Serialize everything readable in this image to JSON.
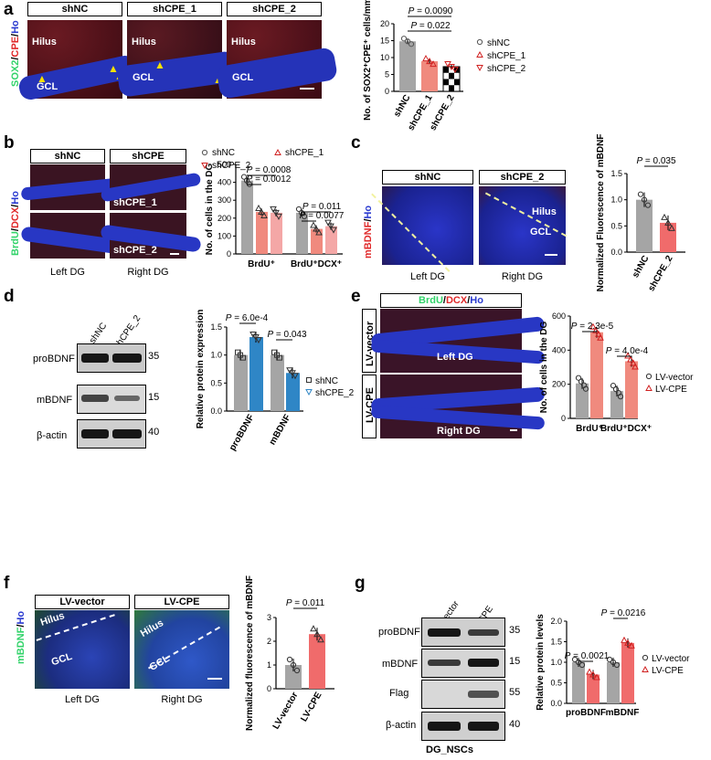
{
  "colors": {
    "grey": "#a5a5a5",
    "salmon": "#f08a7e",
    "pink": "#f4a7a6",
    "blue": "#2f86c6",
    "lightred": "#f06b6b",
    "nuclei": "#2a3ad0",
    "cpe": "#b0282a",
    "sox2": "#32d36a"
  },
  "a": {
    "label": "a",
    "headers": [
      "shNC",
      "shCPE_1",
      "shCPE_2"
    ],
    "stain": {
      "sox2": "SOX2",
      "cpe": "CPE",
      "ho": "Ho",
      "sep": "/"
    },
    "img_text": {
      "hilus": "Hilus",
      "gcl": "GCL"
    },
    "chart": {
      "ylabel": "No. of SOX2⁺CPE⁺ cells/mm²",
      "yticks": [
        "0",
        "5",
        "10",
        "15",
        "20"
      ],
      "p1": "P = 0.022",
      "p2": "P = 0.0090",
      "xcats": [
        "shNC",
        "shCPE_1",
        "shCPE_2"
      ],
      "legend": [
        "shNC",
        "shCPE_1",
        "shCPE_2"
      ]
    }
  },
  "b": {
    "label": "b",
    "headers": [
      "shNC",
      "shCPE"
    ],
    "stain": {
      "brdu": "BrdU",
      "dcx": "DCX",
      "ho": "Ho",
      "sep": "/"
    },
    "img_text": [
      "shCPE_1",
      "shCPE_2"
    ],
    "captions": [
      "Left DG",
      "Right DG"
    ],
    "chart": {
      "ylabel": "No. of cells in the DG",
      "yticks": [
        "0",
        "100",
        "200",
        "300",
        "400",
        "500"
      ],
      "p": [
        "P = 0.0008",
        "P = 0.0012",
        "P = 0.011",
        "P = 0.0077"
      ],
      "xcats": [
        "BrdU⁺",
        "BrdU⁺DCX⁺"
      ],
      "legend": [
        "shNC",
        "shCPE_1",
        "shCPE_2"
      ]
    }
  },
  "c": {
    "label": "c",
    "headers": [
      "shNC",
      "shCPE_2"
    ],
    "stain": {
      "mbdnf": "mBDNF",
      "ho": "Ho",
      "sep": "/"
    },
    "img_text": {
      "hilus": "Hilus",
      "gcl": "GCL"
    },
    "captions": [
      "Left DG",
      "Right DG"
    ],
    "chart": {
      "ylabel": "Normalized Fluorescence of mBDNF",
      "yticks": [
        "0.0",
        "0.5",
        "1.0",
        "1.5"
      ],
      "p": "P = 0.035",
      "xcats": [
        "shNC",
        "shCPE_2"
      ]
    }
  },
  "d": {
    "label": "d",
    "lanes": [
      "shNC",
      "shCPE_2"
    ],
    "bands": [
      "proBDNF",
      "mBDNF",
      "β-actin"
    ],
    "mw": [
      "35",
      "15",
      "40"
    ],
    "chart": {
      "ylabel": "Relative protein expression",
      "yticks": [
        "0.0",
        "0.5",
        "1.0",
        "1.5"
      ],
      "p": [
        "P = 6.0e-4",
        "P = 0.043"
      ],
      "xcats": [
        "proBDNF",
        "mBDNF"
      ],
      "legend": [
        "shNC",
        "shCPE_2"
      ]
    }
  },
  "e": {
    "label": "e",
    "header_stain": {
      "brdu": "BrdU",
      "dcx": "DCX",
      "ho": "Ho",
      "sep": "/"
    },
    "rows": [
      "LV-vector",
      "LV-CPE"
    ],
    "img_text": [
      "Left DG",
      "Right DG"
    ],
    "chart": {
      "ylabel": "No. of cells in the DG",
      "yticks": [
        "0",
        "200",
        "400",
        "600"
      ],
      "p": [
        "P = 2.3e-5",
        "P = 4.0e-4"
      ],
      "xcats": [
        "BrdU⁺",
        "BrdU⁺DCX⁺"
      ],
      "legend": [
        "LV-vector",
        "LV-CPE"
      ]
    }
  },
  "f": {
    "label": "f",
    "headers": [
      "LV-vector",
      "LV-CPE"
    ],
    "stain": {
      "mbdnf": "mBDNF",
      "ho": "Ho",
      "sep": "/"
    },
    "img_text": {
      "hilus": "Hilus",
      "gcl": "GCL"
    },
    "captions": [
      "Left DG",
      "Right DG"
    ],
    "chart": {
      "ylabel": "Normalized fluorescence of mBDNF",
      "yticks": [
        "0",
        "1",
        "2",
        "3"
      ],
      "p": "P = 0.011",
      "xcats": [
        "LV-vector",
        "LV-CPE"
      ]
    }
  },
  "g": {
    "label": "g",
    "lanes": [
      "LV-vector",
      "LV-CPE"
    ],
    "bands": [
      "proBDNF",
      "mBDNF",
      "Flag",
      "β-actin"
    ],
    "mw": [
      "35",
      "15",
      "55",
      "40"
    ],
    "bottom": "DG_NSCs",
    "chart": {
      "ylabel": "Relative protein levels",
      "yticks": [
        "0.0",
        "0.5",
        "1.0",
        "1.5",
        "2.0"
      ],
      "p": [
        "P = 0.0021",
        "P = 0.0216"
      ],
      "xcats": [
        "proBDNF",
        "mBDNF"
      ],
      "legend": [
        "LV-vector",
        "LV-CPE"
      ]
    }
  },
  "chart_data": [
    {
      "panel": "a",
      "type": "bar",
      "categories": [
        "shNC",
        "shCPE_1",
        "shCPE_2"
      ],
      "values": [
        14.8,
        8.9,
        7.3
      ],
      "ylim": [
        0,
        20
      ]
    },
    {
      "panel": "b",
      "type": "bar",
      "categories": [
        "BrdU⁺",
        "BrdU⁺DCX⁺"
      ],
      "series": [
        {
          "name": "shNC",
          "values": [
            410,
            230
          ]
        },
        {
          "name": "shCPE_1",
          "values": [
            235,
            140
          ]
        },
        {
          "name": "shCPE_2",
          "values": [
            230,
            155
          ]
        }
      ],
      "ylim": [
        0,
        500
      ]
    },
    {
      "panel": "c",
      "type": "bar",
      "categories": [
        "shNC",
        "shCPE_2"
      ],
      "values": [
        1.0,
        0.56
      ],
      "ylim": [
        0,
        1.5
      ]
    },
    {
      "panel": "d",
      "type": "bar",
      "categories": [
        "proBDNF",
        "mBDNF"
      ],
      "series": [
        {
          "name": "shNC",
          "values": [
            1.0,
            1.0
          ]
        },
        {
          "name": "shCPE_2",
          "values": [
            1.32,
            0.68
          ]
        }
      ],
      "ylim": [
        0,
        1.5
      ]
    },
    {
      "panel": "e",
      "type": "bar",
      "categories": [
        "BrdU⁺",
        "BrdU⁺DCX⁺"
      ],
      "series": [
        {
          "name": "LV-vector",
          "values": [
            205,
            160
          ]
        },
        {
          "name": "LV-CPE",
          "values": [
            505,
            335
          ]
        }
      ],
      "ylim": [
        0,
        600
      ]
    },
    {
      "panel": "f",
      "type": "bar",
      "categories": [
        "LV-vector",
        "LV-CPE"
      ],
      "values": [
        1.0,
        2.3
      ],
      "ylim": [
        0,
        3
      ]
    },
    {
      "panel": "g",
      "type": "bar",
      "categories": [
        "proBDNF",
        "mBDNF"
      ],
      "series": [
        {
          "name": "LV-vector",
          "values": [
            1.0,
            1.0
          ]
        },
        {
          "name": "LV-CPE",
          "values": [
            0.7,
            1.47
          ]
        }
      ],
      "ylim": [
        0,
        2
      ]
    }
  ]
}
